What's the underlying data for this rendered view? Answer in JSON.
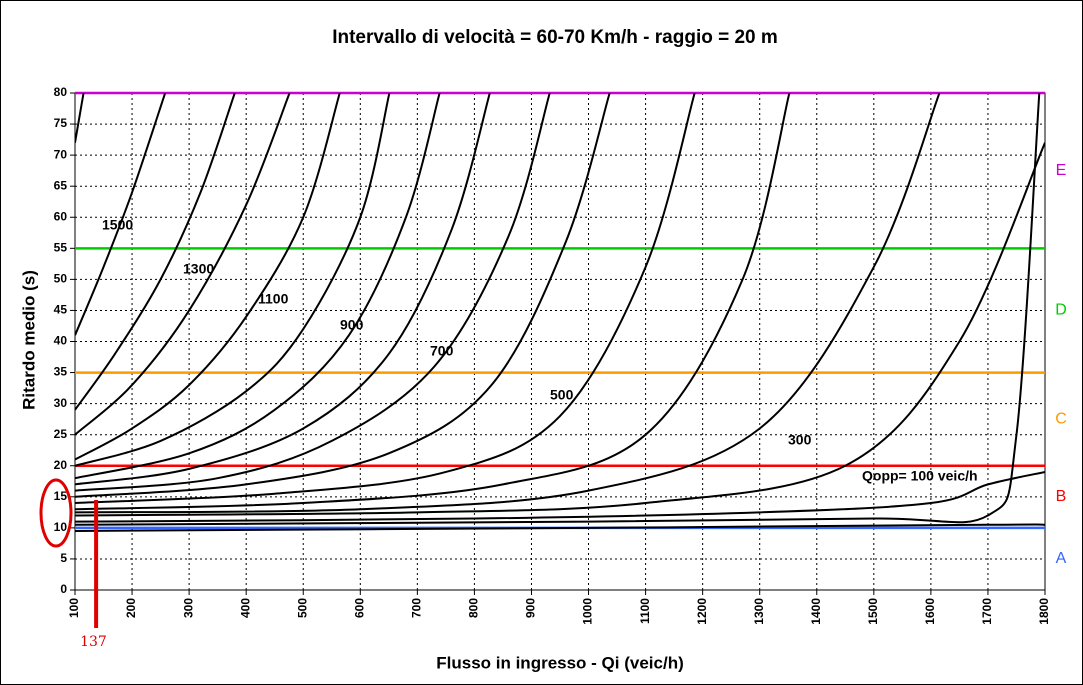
{
  "chart_data": {
    "type": "line",
    "title": "Intervallo di velocità = 60-70 Km/h - raggio = 20 m",
    "x_label": "Flusso in ingresso - Qi (veic/h)",
    "y_label": "Ritardo medio (s)",
    "xlim": [
      100,
      1800
    ],
    "ylim": [
      0,
      80
    ],
    "xticks": [
      100,
      200,
      300,
      400,
      500,
      600,
      700,
      800,
      900,
      1000,
      1100,
      1200,
      1300,
      1400,
      1500,
      1600,
      1700,
      1800
    ],
    "yticks": [
      0,
      5,
      10,
      15,
      20,
      25,
      30,
      35,
      40,
      45,
      50,
      55,
      60,
      65,
      70,
      75,
      80
    ],
    "grid": true,
    "line_color": "#000000",
    "series": [
      {
        "x": [
          100,
          115
        ],
        "values": [
          72,
          80
        ]
      },
      {
        "x": [
          100,
          150,
          200,
          258
        ],
        "values": [
          41,
          52,
          64,
          80
        ]
      },
      {
        "name": "1500",
        "x": [
          100,
          170,
          250,
          320,
          380
        ],
        "values": [
          29,
          38,
          50,
          64,
          80
        ]
      },
      {
        "x": [
          100,
          200,
          300,
          400,
          476
        ],
        "values": [
          25,
          33,
          45,
          62,
          80
        ]
      },
      {
        "name": "1300",
        "x": [
          100,
          200,
          300,
          400,
          500,
          564
        ],
        "values": [
          21,
          26,
          33,
          44,
          60,
          80
        ]
      },
      {
        "x": [
          100,
          250,
          400,
          500,
          600,
          651
        ],
        "values": [
          20,
          24,
          32,
          42,
          60,
          80
        ]
      },
      {
        "name": "1100",
        "x": [
          100,
          300,
          450,
          580,
          680,
          739
        ],
        "values": [
          18,
          22,
          29,
          41,
          60,
          80
        ]
      },
      {
        "x": [
          100,
          300,
          500,
          650,
          760,
          827
        ],
        "values": [
          17,
          19.5,
          26,
          38,
          58,
          80
        ]
      },
      {
        "name": "900",
        "x": [
          100,
          350,
          550,
          730,
          860,
          932
        ],
        "values": [
          16,
          18,
          24,
          36,
          57,
          80
        ]
      },
      {
        "x": [
          100,
          400,
          650,
          830,
          960,
          1037
        ],
        "values": [
          15,
          17,
          22,
          33,
          56,
          80
        ]
      },
      {
        "name": "700",
        "x": [
          100,
          450,
          750,
          950,
          1100,
          1186
        ],
        "values": [
          14,
          15.5,
          19,
          28,
          52,
          80
        ]
      },
      {
        "x": [
          100,
          500,
          850,
          1100,
          1270,
          1352
        ],
        "values": [
          13,
          14,
          17,
          25,
          50,
          80
        ]
      },
      {
        "name": "500",
        "x": [
          100,
          600,
          1000,
          1300,
          1500,
          1615
        ],
        "values": [
          12.5,
          13,
          16,
          26,
          52,
          80
        ]
      },
      {
        "x": [
          100,
          700,
          1100,
          1450,
          1650,
          1800
        ],
        "values": [
          12,
          12.5,
          14,
          20,
          40,
          72
        ]
      },
      {
        "name": "300",
        "x": [
          100,
          800,
          1300,
          1600,
          1700,
          1800
        ],
        "values": [
          11,
          11.5,
          12.5,
          14,
          17,
          19
        ]
      },
      {
        "x": [
          100,
          1000,
          1500,
          1700,
          1750,
          1790
        ],
        "values": [
          10.5,
          11,
          11.5,
          12,
          25,
          80
        ]
      },
      {
        "name": "Qopp= 100 veic/h",
        "x": [
          100,
          1000,
          1700,
          1800
        ],
        "values": [
          9.5,
          10,
          10.5,
          10.5
        ]
      }
    ],
    "levels": [
      {
        "label": "A",
        "color": "#3366ff",
        "upper": 10
      },
      {
        "label": "B",
        "color": "#ff0000",
        "upper": 20
      },
      {
        "label": "C",
        "color": "#ff9900",
        "upper": 35
      },
      {
        "label": "D",
        "color": "#00cc00",
        "upper": 55
      },
      {
        "label": "E",
        "color": "#cc00cc",
        "upper": 80
      }
    ],
    "marker": {
      "text": "137",
      "x": 137,
      "color": "#e00000"
    }
  }
}
